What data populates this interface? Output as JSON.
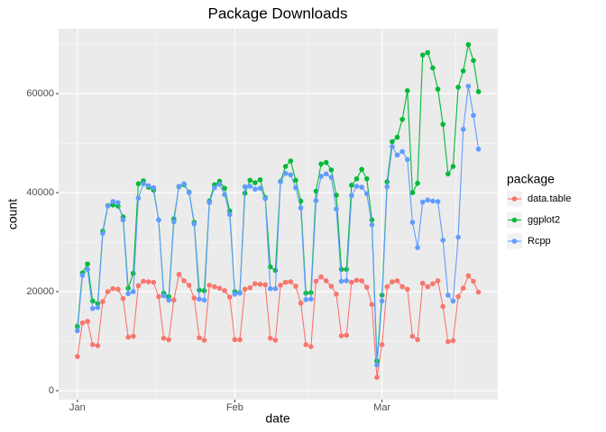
{
  "chart_data": {
    "type": "line",
    "title": "Package Downloads",
    "x_label": "date",
    "y_label": "count",
    "legend_title": "package",
    "x": [
      1,
      2,
      3,
      4,
      5,
      6,
      7,
      8,
      9,
      10,
      11,
      12,
      13,
      14,
      15,
      16,
      17,
      18,
      19,
      20,
      21,
      22,
      23,
      24,
      25,
      26,
      27,
      28,
      29,
      30,
      31,
      32,
      33,
      34,
      35,
      36,
      37,
      38,
      39,
      40,
      41,
      42,
      43,
      44,
      45,
      46,
      47,
      48,
      49,
      50,
      51,
      52,
      53,
      54,
      55,
      56,
      57,
      58,
      59,
      60,
      61,
      62,
      63,
      64,
      65,
      66,
      67,
      68,
      69,
      70,
      71,
      72,
      73,
      74,
      75,
      76,
      77,
      78,
      79,
      80
    ],
    "series": [
      {
        "name": "data.table",
        "color": "#F8766D",
        "values": [
          6900,
          13700,
          14000,
          9300,
          9100,
          18000,
          20000,
          20600,
          20500,
          18600,
          10800,
          11000,
          21200,
          22100,
          22000,
          21900,
          19000,
          10600,
          10300,
          18300,
          23500,
          22200,
          21300,
          18700,
          10700,
          10200,
          21300,
          21000,
          20700,
          20200,
          18900,
          10300,
          10300,
          20500,
          20800,
          21600,
          21500,
          21400,
          10600,
          10200,
          21300,
          21900,
          22000,
          21100,
          17700,
          9300,
          8900,
          22100,
          23000,
          22200,
          21100,
          19500,
          11100,
          11200,
          21900,
          22300,
          22200,
          20900,
          17400,
          2700,
          9300,
          21000,
          22000,
          22200,
          21000,
          20500,
          11000,
          10300,
          21700,
          21000,
          21600,
          22200,
          17000,
          9900,
          10100,
          19000,
          20700,
          23200,
          22100,
          19900
        ]
      },
      {
        "name": "ggplot2",
        "color": "#00BA38",
        "values": [
          13000,
          23800,
          25600,
          18100,
          17600,
          32200,
          37400,
          37500,
          37300,
          35100,
          20700,
          23700,
          41800,
          42400,
          41100,
          40500,
          34500,
          19700,
          19000,
          34700,
          41200,
          41600,
          40100,
          34000,
          20300,
          20200,
          38300,
          41600,
          42300,
          40900,
          36300,
          20000,
          19800,
          39900,
          42500,
          42000,
          42600,
          39000,
          25000,
          24300,
          42300,
          45300,
          46400,
          42500,
          38300,
          19700,
          19800,
          40300,
          45800,
          46100,
          44600,
          39500,
          24500,
          24500,
          41500,
          42800,
          44700,
          42800,
          34500,
          6000,
          19300,
          42200,
          50300,
          51200,
          54800,
          60600,
          40000,
          41900,
          67800,
          68300,
          65200,
          60900,
          53800,
          43800,
          45300,
          61300,
          64600,
          69900,
          66700,
          60400
        ]
      },
      {
        "name": "Rcpp",
        "color": "#619CFF",
        "values": [
          12100,
          23300,
          24500,
          16600,
          16800,
          31800,
          37300,
          38200,
          38000,
          34500,
          19600,
          20000,
          38900,
          41800,
          41400,
          41000,
          34500,
          19200,
          18300,
          34100,
          41300,
          41800,
          40000,
          33700,
          18500,
          18300,
          38000,
          41000,
          41700,
          39600,
          35600,
          19500,
          19700,
          41200,
          41300,
          40700,
          40900,
          38800,
          20600,
          20600,
          42200,
          43900,
          43600,
          41000,
          36900,
          18400,
          18500,
          38400,
          43300,
          43800,
          43100,
          36700,
          22100,
          22200,
          39400,
          41300,
          41100,
          39800,
          33500,
          5200,
          18100,
          41200,
          49300,
          47600,
          48300,
          46700,
          34000,
          28900,
          38100,
          38500,
          38300,
          38200,
          30400,
          19300,
          18100,
          31000,
          52800,
          61500,
          55600,
          48800
        ]
      }
    ],
    "xlim": [
      -2.7,
      83.8
    ],
    "xticks": [
      {
        "value": 1,
        "label": "Jan"
      },
      {
        "value": 32,
        "label": "Feb"
      },
      {
        "value": 61,
        "label": "Mar"
      }
    ],
    "ylim": [
      -1800,
      73100
    ],
    "yticks": [
      0,
      20000,
      40000,
      60000
    ],
    "grid": true,
    "legend": "right"
  }
}
